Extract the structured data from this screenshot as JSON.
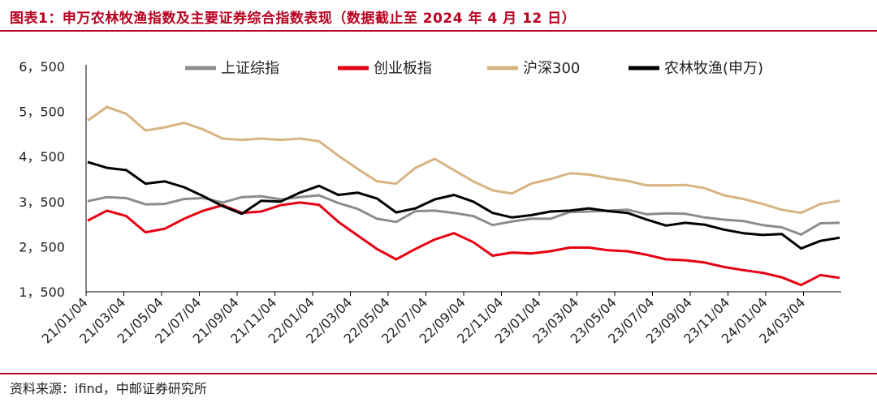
{
  "header": {
    "title": "图表1：申万农林牧渔指数及主要证券综合指数表现（数据截止至 2024 年 4 月 12 日）"
  },
  "footer": {
    "source": "资料来源：ifind，中邮证券研究所"
  },
  "colors": {
    "accent": "#b8001f"
  },
  "chart_data": {
    "type": "line",
    "title": "",
    "xlabel": "",
    "ylabel": "",
    "ylim": [
      1500,
      6500
    ],
    "yticks": [
      1500,
      2500,
      3500,
      4500,
      5500,
      6500
    ],
    "ytick_labels": [
      "1，500",
      "2，500",
      "3，500",
      "4，500",
      "5，500",
      "6，500"
    ],
    "xtick_labels": [
      "21/01/04",
      "21/03/04",
      "21/05/04",
      "21/07/04",
      "21/09/04",
      "21/11/04",
      "22/01/04",
      "22/03/04",
      "22/05/04",
      "22/07/04",
      "22/09/04",
      "22/11/04",
      "23/01/04",
      "23/03/04",
      "23/05/04",
      "23/07/04",
      "23/09/04",
      "23/11/04",
      "24/01/04",
      "24/03/04"
    ],
    "grid": false,
    "legend_position": "top",
    "x": [
      "21/01/04",
      "21/02/04",
      "21/03/04",
      "21/04/04",
      "21/05/04",
      "21/06/04",
      "21/07/04",
      "21/08/04",
      "21/09/04",
      "21/10/04",
      "21/11/04",
      "21/12/04",
      "22/01/04",
      "22/02/04",
      "22/03/04",
      "22/04/04",
      "22/05/04",
      "22/06/04",
      "22/07/04",
      "22/08/04",
      "22/09/04",
      "22/10/04",
      "22/11/04",
      "22/12/04",
      "23/01/04",
      "23/02/04",
      "23/03/04",
      "23/04/04",
      "23/05/04",
      "23/06/04",
      "23/07/04",
      "23/08/04",
      "23/09/04",
      "23/10/04",
      "23/11/04",
      "23/12/04",
      "24/01/04",
      "24/02/04",
      "24/03/04",
      "24/04/12"
    ],
    "series": [
      {
        "name": "上证综指",
        "color": "#8c8c8c",
        "values": [
          3510,
          3600,
          3580,
          3440,
          3450,
          3560,
          3580,
          3480,
          3600,
          3620,
          3550,
          3600,
          3640,
          3470,
          3340,
          3120,
          3050,
          3290,
          3300,
          3250,
          3180,
          2980,
          3060,
          3120,
          3120,
          3270,
          3280,
          3300,
          3320,
          3220,
          3240,
          3230,
          3150,
          3100,
          3070,
          2980,
          2930,
          2770,
          3020,
          3030
        ]
      },
      {
        "name": "创业板指",
        "color": "#e60012",
        "values": [
          3080,
          3300,
          3180,
          2820,
          2900,
          3120,
          3300,
          3420,
          3250,
          3280,
          3420,
          3480,
          3430,
          3050,
          2750,
          2450,
          2220,
          2450,
          2660,
          2800,
          2600,
          2300,
          2370,
          2350,
          2400,
          2480,
          2480,
          2420,
          2400,
          2320,
          2220,
          2200,
          2150,
          2050,
          1980,
          1920,
          1820,
          1650,
          1870,
          1810
        ]
      },
      {
        "name": "沪深300",
        "color": "#d7b482",
        "values": [
          5300,
          5600,
          5450,
          5080,
          5150,
          5250,
          5100,
          4900,
          4870,
          4900,
          4870,
          4900,
          4840,
          4520,
          4230,
          3950,
          3900,
          4250,
          4450,
          4200,
          3950,
          3750,
          3680,
          3900,
          4000,
          4130,
          4100,
          4020,
          3960,
          3860,
          3860,
          3870,
          3800,
          3640,
          3560,
          3450,
          3320,
          3250,
          3450,
          3520
        ]
      },
      {
        "name": "农林牧渔(申万)",
        "color": "#000000",
        "values": [
          4380,
          4250,
          4200,
          3900,
          3950,
          3820,
          3620,
          3400,
          3230,
          3520,
          3500,
          3700,
          3850,
          3650,
          3700,
          3570,
          3260,
          3350,
          3550,
          3650,
          3500,
          3250,
          3150,
          3200,
          3280,
          3300,
          3350,
          3290,
          3250,
          3100,
          2970,
          3030,
          2990,
          2880,
          2800,
          2760,
          2780,
          2460,
          2630,
          2700
        ]
      }
    ]
  }
}
